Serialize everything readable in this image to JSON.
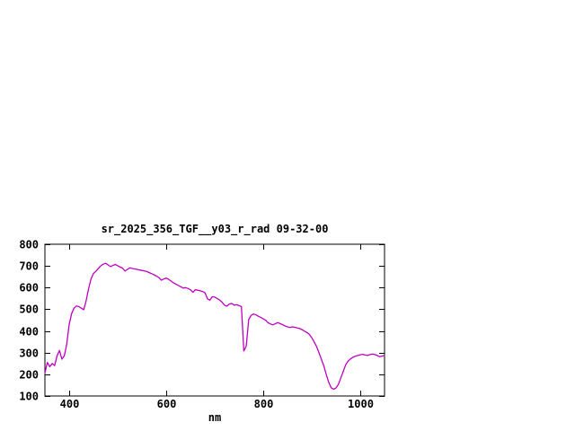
{
  "window": {
    "background": "#ffffff"
  },
  "chart_data": {
    "type": "line",
    "title": "sr_2025_356_TGF__y03_r_rad 09-32-00",
    "xlabel": "nm",
    "ylabel": "",
    "xlim": [
      350,
      1050
    ],
    "ylim": [
      100,
      800
    ],
    "x_ticks": [
      400,
      600,
      800,
      1000
    ],
    "y_ticks": [
      100,
      200,
      300,
      400,
      500,
      600,
      700,
      800
    ],
    "grid": false,
    "legend": "none",
    "line_color": "#bf00bf",
    "border_color": "#000000",
    "text_color": "#000000",
    "series": [
      {
        "name": "sr_2025_356_TGF__y03_r_rad",
        "x": [
          350,
          355,
          360,
          365,
          370,
          375,
          380,
          385,
          390,
          395,
          400,
          405,
          410,
          415,
          420,
          425,
          430,
          435,
          440,
          445,
          450,
          455,
          460,
          465,
          470,
          475,
          480,
          485,
          490,
          495,
          500,
          505,
          510,
          515,
          520,
          525,
          530,
          535,
          540,
          545,
          550,
          555,
          560,
          565,
          570,
          575,
          580,
          585,
          590,
          595,
          600,
          605,
          610,
          615,
          620,
          625,
          630,
          635,
          640,
          645,
          650,
          655,
          660,
          665,
          670,
          675,
          680,
          685,
          690,
          695,
          700,
          705,
          710,
          715,
          720,
          725,
          730,
          735,
          740,
          745,
          750,
          755,
          760,
          765,
          770,
          775,
          780,
          785,
          790,
          795,
          800,
          805,
          810,
          815,
          820,
          825,
          830,
          835,
          840,
          845,
          850,
          855,
          860,
          865,
          870,
          875,
          880,
          885,
          890,
          895,
          900,
          905,
          910,
          915,
          920,
          925,
          930,
          935,
          940,
          945,
          950,
          955,
          960,
          965,
          970,
          975,
          980,
          985,
          990,
          995,
          1000,
          1005,
          1010,
          1015,
          1020,
          1025,
          1030,
          1035,
          1040,
          1045,
          1050
        ],
        "values": [
          205,
          255,
          235,
          250,
          240,
          285,
          310,
          270,
          285,
          340,
          430,
          480,
          505,
          515,
          512,
          505,
          498,
          540,
          595,
          640,
          665,
          675,
          688,
          700,
          708,
          712,
          705,
          697,
          702,
          707,
          701,
          695,
          690,
          676,
          684,
          691,
          688,
          686,
          684,
          681,
          679,
          677,
          674,
          669,
          664,
          659,
          653,
          646,
          634,
          640,
          644,
          638,
          630,
          622,
          616,
          610,
          604,
          598,
          600,
          596,
          590,
          578,
          590,
          588,
          585,
          582,
          576,
          548,
          542,
          558,
          556,
          550,
          543,
          533,
          519,
          514,
          524,
          527,
          519,
          521,
          517,
          512,
          308,
          330,
          452,
          472,
          478,
          474,
          468,
          462,
          456,
          449,
          438,
          432,
          428,
          434,
          438,
          434,
          429,
          423,
          419,
          416,
          419,
          417,
          414,
          411,
          406,
          399,
          393,
          384,
          369,
          349,
          328,
          299,
          268,
          238,
          198,
          163,
          138,
          131,
          137,
          154,
          184,
          214,
          244,
          261,
          271,
          279,
          284,
          287,
          290,
          292,
          289,
          287,
          291,
          294,
          291,
          287,
          281,
          284,
          287
        ]
      }
    ]
  }
}
